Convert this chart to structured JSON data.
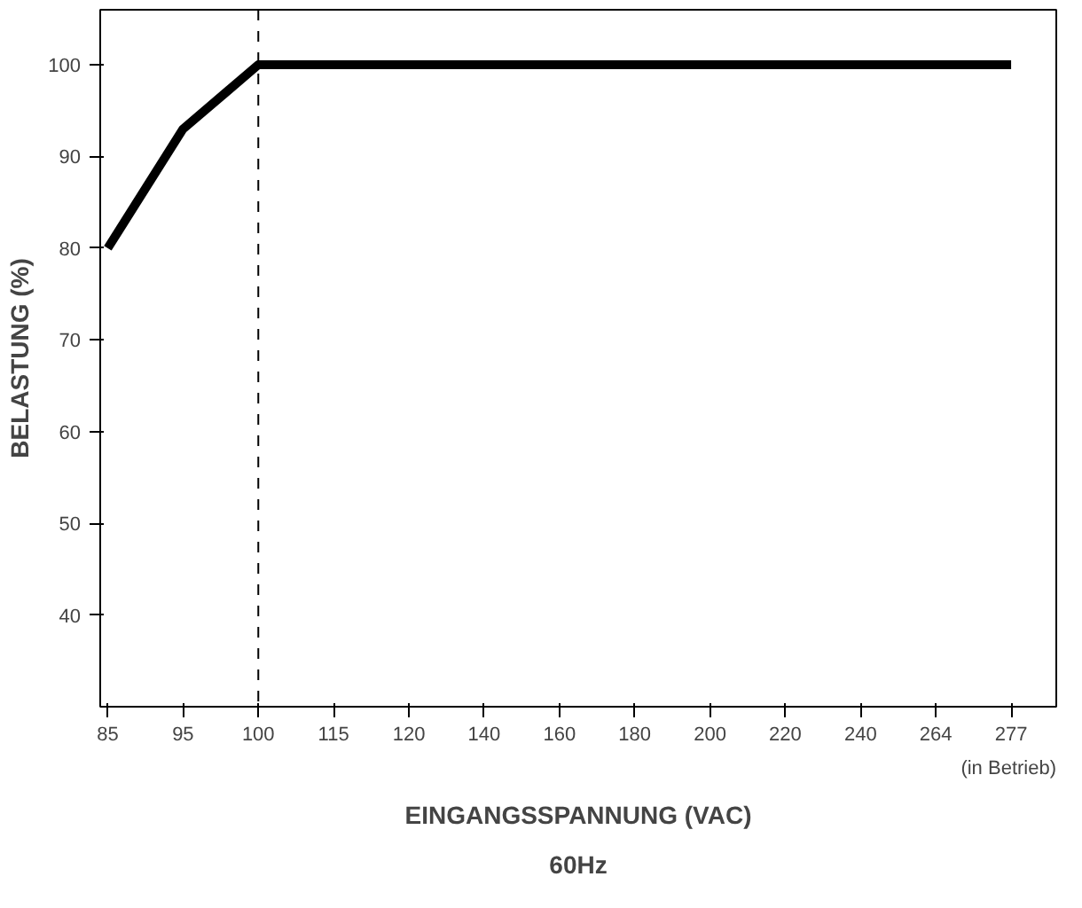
{
  "chart_data": {
    "type": "line",
    "xlabel": "EINGANGSSPANNUNG (VAC)",
    "ylabel": "BELASTUNG (%)",
    "categories": [
      "85",
      "95",
      "100",
      "115",
      "120",
      "140",
      "160",
      "180",
      "200",
      "220",
      "240",
      "264",
      "277"
    ],
    "series": [
      {
        "color": "#000000",
        "values": [
          80,
          93,
          100,
          100,
          100,
          100,
          100,
          100,
          100,
          100,
          100,
          100,
          100
        ]
      }
    ],
    "ylim": [
      30,
      106
    ],
    "yticks": [
      40,
      50,
      60,
      70,
      80,
      90,
      100
    ],
    "ref_lines": [
      {
        "axis": "x",
        "value": "100",
        "line_style": "dashed",
        "color": "#000000"
      }
    ],
    "annotations": [
      "(in Betrieb)",
      "60Hz"
    ],
    "grid": false,
    "marker": "none",
    "line_style": "solid"
  }
}
